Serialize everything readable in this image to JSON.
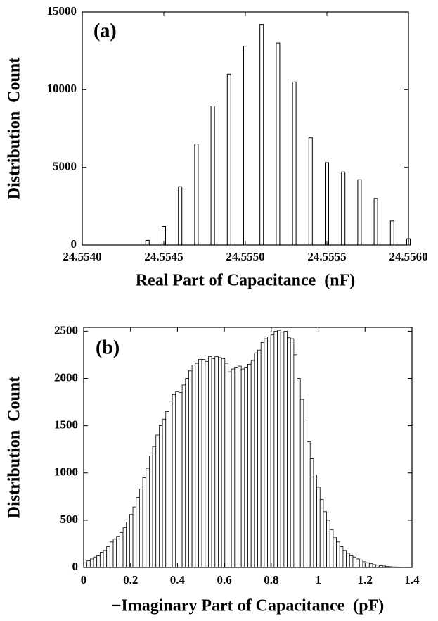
{
  "chart_data": [
    {
      "type": "bar",
      "annotation": "(a)",
      "xlabel": "Real Part of Capacitance  (nF)",
      "ylabel": "Distribution  Count",
      "x": [
        24.5544,
        24.5545,
        24.5546,
        24.5547,
        24.5548,
        24.5549,
        24.555,
        24.5551,
        24.5552,
        24.5553,
        24.5554,
        24.5555,
        24.5556,
        24.5557,
        24.5558,
        24.5559,
        24.556
      ],
      "values": [
        300,
        1200,
        3750,
        6500,
        8950,
        11000,
        12800,
        14200,
        13000,
        10500,
        6900,
        5300,
        4700,
        4200,
        3000,
        1550,
        400
      ],
      "color": "#ffffff",
      "xlim": [
        24.554,
        24.556
      ],
      "xticks": [
        {
          "value": 24.554,
          "label": "24.5540"
        },
        {
          "value": 24.5545,
          "label": "24.5545"
        },
        {
          "value": 24.555,
          "label": "24.5550"
        },
        {
          "value": 24.5555,
          "label": "24.5555"
        },
        {
          "value": 24.556,
          "label": "24.5560"
        }
      ],
      "ylim": [
        0,
        15000
      ],
      "yticks": [
        0,
        5000,
        10000,
        15000
      ]
    },
    {
      "type": "histogram",
      "annotation": "(b)",
      "xlabel": "−Imaginary Part of Capacitance  (pF)",
      "ylabel": "Distribution  Count",
      "bins": [
        0,
        0.014,
        0.028,
        0.042,
        0.056,
        0.07,
        0.084,
        0.098,
        0.112,
        0.126,
        0.14,
        0.154,
        0.168,
        0.182,
        0.196,
        0.21,
        0.224,
        0.238,
        0.252,
        0.266,
        0.28,
        0.294,
        0.308,
        0.322,
        0.336,
        0.35,
        0.364,
        0.378,
        0.392,
        0.406,
        0.42,
        0.434,
        0.448,
        0.462,
        0.476,
        0.49,
        0.504,
        0.518,
        0.532,
        0.546,
        0.56,
        0.574,
        0.588,
        0.602,
        0.616,
        0.63,
        0.644,
        0.658,
        0.672,
        0.686,
        0.7,
        0.714,
        0.728,
        0.742,
        0.756,
        0.77,
        0.784,
        0.798,
        0.812,
        0.826,
        0.84,
        0.854,
        0.868,
        0.882,
        0.896,
        0.91,
        0.924,
        0.938,
        0.952,
        0.966,
        0.98,
        0.994,
        1.008,
        1.022,
        1.036,
        1.05,
        1.064,
        1.078,
        1.092,
        1.106,
        1.12,
        1.134,
        1.148,
        1.162,
        1.176,
        1.19,
        1.204,
        1.218,
        1.232,
        1.246,
        1.26,
        1.274,
        1.288,
        1.302,
        1.316,
        1.33,
        1.344,
        1.358,
        1.372,
        1.386,
        1.4
      ],
      "values": [
        50,
        70,
        90,
        110,
        130,
        160,
        180,
        220,
        270,
        300,
        330,
        370,
        420,
        480,
        560,
        640,
        740,
        830,
        950,
        1050,
        1180,
        1280,
        1400,
        1500,
        1570,
        1650,
        1760,
        1830,
        1860,
        1850,
        1930,
        2000,
        2080,
        2140,
        2160,
        2200,
        2200,
        2180,
        2230,
        2210,
        2230,
        2220,
        2210,
        2160,
        2070,
        2100,
        2120,
        2130,
        2100,
        2120,
        2150,
        2190,
        2270,
        2300,
        2380,
        2420,
        2440,
        2460,
        2500,
        2510,
        2490,
        2500,
        2430,
        2420,
        2250,
        2000,
        1780,
        1560,
        1330,
        1150,
        980,
        850,
        720,
        590,
        500,
        400,
        320,
        270,
        220,
        180,
        150,
        130,
        110,
        90,
        80,
        60,
        50,
        40,
        30,
        25,
        20,
        15,
        10,
        8,
        6,
        5,
        4,
        3,
        2,
        2
      ],
      "color": "#ffffff",
      "xlim": [
        0,
        1.4
      ],
      "xticks": [
        0,
        0.2,
        0.4,
        0.6,
        0.8,
        1,
        1.2,
        1.4
      ],
      "ylim": [
        0,
        2540
      ],
      "yticks": [
        0,
        500,
        1000,
        1500,
        2000,
        2500
      ]
    }
  ]
}
